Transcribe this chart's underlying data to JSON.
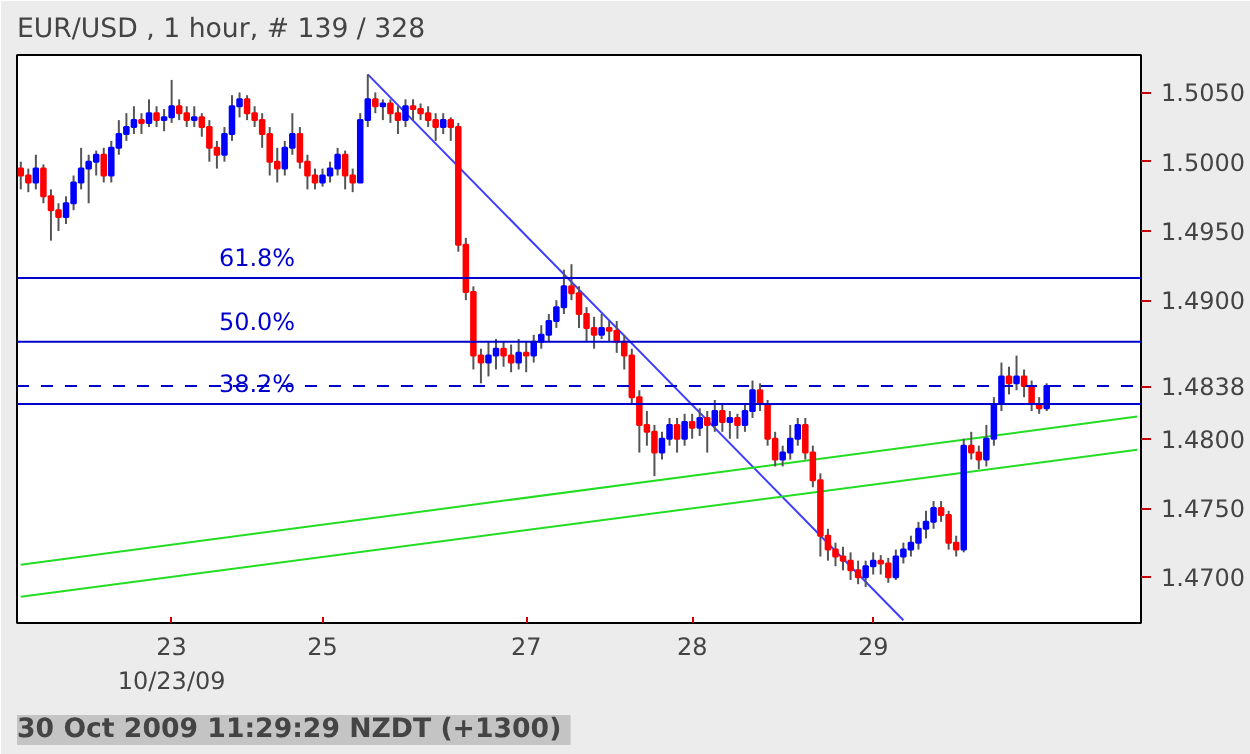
{
  "chart_data": {
    "type": "candlestick",
    "title": "EUR/USD , 1 hour, # 139 / 328",
    "annotations": [
      "30 Oct 2009 11:29:29  NZDT (+1300)",
      {
        "text": "61.8%",
        "y": 1.4916
      },
      {
        "text": "50.0%",
        "y": 1.487
      },
      {
        "text": "38.2%",
        "y": 1.4825
      }
    ],
    "categories": [
      null,
      null,
      null,
      null,
      null,
      null,
      null,
      null,
      null,
      null,
      null,
      null,
      null,
      null,
      null,
      null,
      null,
      null,
      null,
      null,
      "23\n10/23/09",
      null,
      null,
      null,
      null,
      null,
      null,
      null,
      null,
      null,
      null,
      null,
      null,
      null,
      null,
      null,
      null,
      null,
      null,
      null,
      "25",
      null,
      null,
      null,
      null,
      null,
      null,
      null,
      null,
      null,
      null,
      null,
      null,
      null,
      null,
      null,
      null,
      null,
      null,
      null,
      null,
      null,
      null,
      null,
      null,
      null,
      null,
      "27",
      null,
      null,
      null,
      null,
      null,
      null,
      null,
      null,
      null,
      null,
      null,
      null,
      null,
      null,
      null,
      null,
      null,
      null,
      null,
      null,
      null,
      "28",
      null,
      null,
      null,
      null,
      null,
      null,
      null,
      null,
      null,
      null,
      null,
      null,
      null,
      null,
      null,
      null,
      null,
      null,
      null,
      null,
      null,
      null,
      null,
      "29",
      null,
      null,
      null,
      null,
      null,
      null,
      null,
      null,
      null,
      null,
      null,
      null,
      null,
      null,
      null,
      null,
      null,
      null,
      null,
      null,
      null,
      null,
      null,
      null,
      null,
      null,
      null,
      null,
      null,
      null,
      null,
      null,
      null,
      null,
      null
    ],
    "ohlc": [
      [
        1.4995,
        1.5,
        1.498,
        1.499
      ],
      [
        1.499,
        1.4995,
        1.4978,
        1.4985
      ],
      [
        1.4985,
        1.5005,
        1.498,
        1.4995
      ],
      [
        1.4995,
        1.4998,
        1.497,
        1.4975
      ],
      [
        1.4975,
        1.498,
        1.4943,
        1.4965
      ],
      [
        1.4965,
        1.497,
        1.495,
        1.496
      ],
      [
        1.496,
        1.4975,
        1.4955,
        1.497
      ],
      [
        1.497,
        1.499,
        1.4965,
        1.4985
      ],
      [
        1.4985,
        1.501,
        1.498,
        1.4995
      ],
      [
        1.4995,
        1.5005,
        1.497,
        1.5
      ],
      [
        1.5,
        1.5008,
        1.499,
        1.5005
      ],
      [
        1.5005,
        1.501,
        1.4985,
        1.499
      ],
      [
        1.499,
        1.5015,
        1.4985,
        1.501
      ],
      [
        1.501,
        1.503,
        1.5005,
        1.502
      ],
      [
        1.502,
        1.5035,
        1.5015,
        1.5025
      ],
      [
        1.5025,
        1.504,
        1.502,
        1.503
      ],
      [
        1.503,
        1.5035,
        1.502,
        1.5028
      ],
      [
        1.5028,
        1.5045,
        1.5025,
        1.5035
      ],
      [
        1.5035,
        1.504,
        1.5025,
        1.503
      ],
      [
        1.503,
        1.5038,
        1.5022,
        1.5032
      ],
      [
        1.5032,
        1.5059,
        1.5028,
        1.504
      ],
      [
        1.504,
        1.5045,
        1.503,
        1.5035
      ],
      [
        1.5035,
        1.504,
        1.5025,
        1.503
      ],
      [
        1.503,
        1.504,
        1.5025,
        1.5032
      ],
      [
        1.5032,
        1.5035,
        1.5018,
        1.5025
      ],
      [
        1.5025,
        1.503,
        1.5,
        1.501
      ],
      [
        1.501,
        1.5015,
        1.4995,
        1.5005
      ],
      [
        1.5005,
        1.5025,
        1.5,
        1.502
      ],
      [
        1.502,
        1.5048,
        1.5015,
        1.504
      ],
      [
        1.504,
        1.505,
        1.5032,
        1.5045
      ],
      [
        1.5045,
        1.5048,
        1.503,
        1.5035
      ],
      [
        1.5035,
        1.504,
        1.5025,
        1.503
      ],
      [
        1.503,
        1.5035,
        1.501,
        1.502
      ],
      [
        1.502,
        1.5025,
        1.499,
        1.5
      ],
      [
        1.5,
        1.501,
        1.4985,
        1.4995
      ],
      [
        1.4995,
        1.5015,
        1.499,
        1.501
      ],
      [
        1.501,
        1.5035,
        1.5005,
        1.502
      ],
      [
        1.502,
        1.5025,
        1.4995,
        1.5
      ],
      [
        1.5,
        1.5005,
        1.498,
        1.499
      ],
      [
        1.499,
        1.4995,
        1.498,
        1.4985
      ],
      [
        1.4985,
        1.4995,
        1.4982,
        1.499
      ],
      [
        1.499,
        1.5,
        1.4985,
        1.4995
      ],
      [
        1.4995,
        1.501,
        1.499,
        1.5005
      ],
      [
        1.5005,
        1.5008,
        1.498,
        1.499
      ],
      [
        1.499,
        1.4995,
        1.4978,
        1.4985
      ],
      [
        1.4985,
        1.5035,
        1.4985,
        1.503
      ],
      [
        1.503,
        1.5063,
        1.5025,
        1.5045
      ],
      [
        1.5045,
        1.505,
        1.5035,
        1.504
      ],
      [
        1.504,
        1.5045,
        1.503,
        1.5042
      ],
      [
        1.5042,
        1.5045,
        1.5028,
        1.5035
      ],
      [
        1.5035,
        1.504,
        1.502,
        1.503
      ],
      [
        1.503,
        1.5045,
        1.5025,
        1.504
      ],
      [
        1.504,
        1.5045,
        1.503,
        1.5038
      ],
      [
        1.5038,
        1.5042,
        1.503,
        1.5035
      ],
      [
        1.5035,
        1.504,
        1.5025,
        1.503
      ],
      [
        1.503,
        1.5035,
        1.5015,
        1.5025
      ],
      [
        1.5025,
        1.5035,
        1.502,
        1.503
      ],
      [
        1.503,
        1.5032,
        1.5015,
        1.5025
      ],
      [
        1.5025,
        1.5028,
        1.4935,
        1.494
      ],
      [
        1.494,
        1.4945,
        1.49,
        1.4906
      ],
      [
        1.4906,
        1.491,
        1.485,
        1.486
      ],
      [
        1.486,
        1.4865,
        1.484,
        1.4855
      ],
      [
        1.4855,
        1.487,
        1.4845,
        1.486
      ],
      [
        1.486,
        1.4872,
        1.485,
        1.4865
      ],
      [
        1.4865,
        1.487,
        1.4852,
        1.486
      ],
      [
        1.486,
        1.4868,
        1.4848,
        1.4855
      ],
      [
        1.4855,
        1.4872,
        1.485,
        1.4862
      ],
      [
        1.4862,
        1.487,
        1.4848,
        1.486
      ],
      [
        1.486,
        1.4875,
        1.4855,
        1.487
      ],
      [
        1.487,
        1.4882,
        1.4865,
        1.4875
      ],
      [
        1.4875,
        1.489,
        1.487,
        1.4885
      ],
      [
        1.4885,
        1.49,
        1.488,
        1.4895
      ],
      [
        1.4895,
        1.4922,
        1.489,
        1.491
      ],
      [
        1.491,
        1.4926,
        1.49,
        1.4905
      ],
      [
        1.4905,
        1.491,
        1.488,
        1.489
      ],
      [
        1.489,
        1.4895,
        1.487,
        1.488
      ],
      [
        1.488,
        1.4888,
        1.4865,
        1.4875
      ],
      [
        1.4875,
        1.489,
        1.4872,
        1.488
      ],
      [
        1.488,
        1.4885,
        1.487,
        1.4878
      ],
      [
        1.4878,
        1.4885,
        1.4862,
        1.487
      ],
      [
        1.487,
        1.4875,
        1.485,
        1.486
      ],
      [
        1.486,
        1.4865,
        1.4825,
        1.483
      ],
      [
        1.483,
        1.4835,
        1.479,
        1.481
      ],
      [
        1.481,
        1.482,
        1.4795,
        1.4805
      ],
      [
        1.4805,
        1.481,
        1.4773,
        1.479
      ],
      [
        1.479,
        1.4805,
        1.4785,
        1.48
      ],
      [
        1.48,
        1.4815,
        1.4795,
        1.481
      ],
      [
        1.481,
        1.4815,
        1.479,
        1.48
      ],
      [
        1.48,
        1.4818,
        1.4795,
        1.4812
      ],
      [
        1.4812,
        1.4818,
        1.48,
        1.4808
      ],
      [
        1.4808,
        1.4822,
        1.4802,
        1.4815
      ],
      [
        1.4815,
        1.482,
        1.479,
        1.481
      ],
      [
        1.481,
        1.4828,
        1.4805,
        1.482
      ],
      [
        1.482,
        1.4825,
        1.4805,
        1.4812
      ],
      [
        1.4812,
        1.482,
        1.48,
        1.4815
      ],
      [
        1.4815,
        1.4818,
        1.48,
        1.481
      ],
      [
        1.481,
        1.4825,
        1.4805,
        1.482
      ],
      [
        1.482,
        1.4842,
        1.4815,
        1.4835
      ],
      [
        1.4835,
        1.484,
        1.482,
        1.4825
      ],
      [
        1.4825,
        1.4828,
        1.4795,
        1.48
      ],
      [
        1.48,
        1.4805,
        1.478,
        1.4785
      ],
      [
        1.4785,
        1.4795,
        1.478,
        1.479
      ],
      [
        1.479,
        1.481,
        1.4785,
        1.48
      ],
      [
        1.48,
        1.4815,
        1.4795,
        1.481
      ],
      [
        1.481,
        1.4815,
        1.4785,
        1.479
      ],
      [
        1.479,
        1.4795,
        1.4765,
        1.477
      ],
      [
        1.477,
        1.4775,
        1.4715,
        1.473
      ],
      [
        1.473,
        1.4735,
        1.4712,
        1.472
      ],
      [
        1.472,
        1.4725,
        1.4708,
        1.4715
      ],
      [
        1.4715,
        1.4722,
        1.4705,
        1.4712
      ],
      [
        1.4712,
        1.4718,
        1.4698,
        1.4705
      ],
      [
        1.4705,
        1.4712,
        1.4695,
        1.47
      ],
      [
        1.47,
        1.4712,
        1.4693,
        1.4708
      ],
      [
        1.4708,
        1.4718,
        1.4702,
        1.4712
      ],
      [
        1.4712,
        1.4716,
        1.4702,
        1.471
      ],
      [
        1.471,
        1.4714,
        1.4696,
        1.47
      ],
      [
        1.47,
        1.472,
        1.4698,
        1.4715
      ],
      [
        1.4715,
        1.4725,
        1.471,
        1.472
      ],
      [
        1.472,
        1.473,
        1.4715,
        1.4725
      ],
      [
        1.4725,
        1.474,
        1.472,
        1.4735
      ],
      [
        1.4735,
        1.4748,
        1.4728,
        1.474
      ],
      [
        1.474,
        1.4755,
        1.4735,
        1.475
      ],
      [
        1.475,
        1.4755,
        1.474,
        1.4745
      ],
      [
        1.4745,
        1.4748,
        1.472,
        1.4725
      ],
      [
        1.4725,
        1.473,
        1.4715,
        1.472
      ],
      [
        1.472,
        1.48,
        1.4718,
        1.4795
      ],
      [
        1.4795,
        1.4805,
        1.4785,
        1.479
      ],
      [
        1.479,
        1.4795,
        1.4778,
        1.4785
      ],
      [
        1.4785,
        1.481,
        1.478,
        1.48
      ],
      [
        1.48,
        1.483,
        1.4795,
        1.4825
      ],
      [
        1.4825,
        1.4855,
        1.482,
        1.4845
      ],
      [
        1.4845,
        1.4852,
        1.4832,
        1.484
      ],
      [
        1.484,
        1.486,
        1.4835,
        1.4845
      ],
      [
        1.4845,
        1.485,
        1.483,
        1.4838
      ],
      [
        1.4838,
        1.4842,
        1.482,
        1.4825
      ],
      [
        1.4825,
        1.483,
        1.4818,
        1.4822
      ],
      [
        1.4822,
        1.484,
        1.482,
        1.4838
      ],
      null,
      null,
      null,
      null,
      null,
      null,
      null,
      null,
      null,
      null,
      null,
      null
    ],
    "colors": [
      "#ff0000",
      "#ff0000",
      "#0000ff",
      "#ff0000",
      "#ff0000",
      "#ff0000",
      "#0000ff",
      "#0000ff",
      "#0000ff",
      "#0000ff",
      "#0000ff",
      "#ff0000",
      "#0000ff",
      "#0000ff",
      "#0000ff",
      "#0000ff",
      "#ff0000",
      "#0000ff",
      "#ff0000",
      "#0000ff",
      "#0000ff",
      "#ff0000",
      "#ff0000",
      "#0000ff",
      "#ff0000",
      "#ff0000",
      "#ff0000",
      "#0000ff",
      "#0000ff",
      "#0000ff",
      "#ff0000",
      "#ff0000",
      "#ff0000",
      "#ff0000",
      "#ff0000",
      "#0000ff",
      "#0000ff",
      "#ff0000",
      "#ff0000",
      "#ff0000",
      "#0000ff",
      "#0000ff",
      "#0000ff",
      "#ff0000",
      "#ff0000",
      "#0000ff",
      "#0000ff",
      "#ff0000",
      "#0000ff",
      "#ff0000",
      "#ff0000",
      "#0000ff",
      "#ff0000",
      "#ff0000",
      "#ff0000",
      "#ff0000",
      "#0000ff",
      "#ff0000",
      "#ff0000",
      "#ff0000",
      "#ff0000",
      "#ff0000",
      "#0000ff",
      "#0000ff",
      "#ff0000",
      "#ff0000",
      "#0000ff",
      "#ff0000",
      "#0000ff",
      "#0000ff",
      "#0000ff",
      "#0000ff",
      "#0000ff",
      "#ff0000",
      "#ff0000",
      "#ff0000",
      "#ff0000",
      "#0000ff",
      "#ff0000",
      "#ff0000",
      "#ff0000",
      "#ff0000",
      "#ff0000",
      "#ff0000",
      "#ff0000",
      "#0000ff",
      "#0000ff",
      "#ff0000",
      "#0000ff",
      "#ff0000",
      "#0000ff",
      "#ff0000",
      "#0000ff",
      "#ff0000",
      "#0000ff",
      "#ff0000",
      "#0000ff",
      "#0000ff",
      "#ff0000",
      "#ff0000",
      "#ff0000",
      "#0000ff",
      "#0000ff",
      "#0000ff",
      "#ff0000",
      "#ff0000",
      "#ff0000",
      "#ff0000",
      "#ff0000",
      "#ff0000",
      "#ff0000",
      "#ff0000",
      "#0000ff",
      "#0000ff",
      "#ff0000",
      "#ff0000",
      "#0000ff",
      "#0000ff",
      "#0000ff",
      "#0000ff",
      "#0000ff",
      "#0000ff",
      "#ff0000",
      "#ff0000",
      "#ff0000",
      "#0000ff",
      "#ff0000",
      "#ff0000",
      "#0000ff",
      "#0000ff",
      "#0000ff",
      "#ff0000",
      "#0000ff",
      "#ff0000",
      "#ff0000",
      "#ff0000",
      "#0000ff",
      null,
      null,
      null,
      null,
      null,
      null,
      null,
      null,
      null,
      null,
      null,
      null
    ],
    "series": [
      {
        "type": "line",
        "color": "#3c3cff",
        "values": [
          null,
          null,
          null,
          null,
          null,
          null,
          null,
          null,
          null,
          null,
          null,
          null,
          null,
          null,
          null,
          null,
          null,
          null,
          null,
          null,
          null,
          null,
          null,
          null,
          null,
          null,
          null,
          null,
          null,
          null,
          null,
          null,
          null,
          null,
          null,
          null,
          null,
          null,
          null,
          null,
          null,
          null,
          null,
          null,
          null,
          null,
          1.5063,
          null,
          null,
          null,
          null,
          null,
          null,
          null,
          null,
          null,
          null,
          null,
          null,
          null,
          null,
          null,
          null,
          null,
          null,
          null,
          null,
          null,
          null,
          null,
          null,
          null,
          null,
          null,
          null,
          null,
          null,
          null,
          null,
          null,
          null,
          null,
          null,
          null,
          null,
          null,
          null,
          null,
          null,
          null,
          null,
          null,
          null,
          null,
          null,
          null,
          null,
          null,
          null,
          null,
          null,
          null,
          null,
          null,
          null,
          null,
          null,
          null,
          null,
          null,
          null,
          null,
          null,
          null,
          null,
          null,
          null,
          1.4669,
          null,
          null,
          null,
          null,
          null,
          null,
          null,
          null,
          null,
          null,
          null,
          null,
          null,
          null,
          null,
          null,
          null,
          null,
          null,
          null,
          null,
          null,
          null,
          null,
          null,
          null,
          null,
          null,
          null,
          null,
          null
        ]
      },
      {
        "type": "line",
        "color": "#22dd22",
        "values": [
          1.4709,
          null,
          null,
          null,
          null,
          null,
          null,
          null,
          null,
          null,
          null,
          null,
          null,
          null,
          null,
          null,
          null,
          null,
          null,
          null,
          null,
          null,
          null,
          null,
          null,
          null,
          null,
          null,
          null,
          null,
          null,
          null,
          null,
          null,
          null,
          null,
          null,
          null,
          null,
          null,
          null,
          null,
          null,
          null,
          null,
          null,
          null,
          null,
          null,
          null,
          null,
          null,
          null,
          null,
          null,
          null,
          null,
          null,
          null,
          null,
          null,
          null,
          null,
          null,
          null,
          null,
          null,
          null,
          null,
          null,
          null,
          null,
          null,
          null,
          null,
          null,
          null,
          null,
          null,
          null,
          null,
          null,
          null,
          null,
          null,
          null,
          null,
          null,
          null,
          null,
          null,
          null,
          null,
          null,
          null,
          null,
          null,
          null,
          null,
          null,
          null,
          null,
          null,
          null,
          null,
          null,
          null,
          null,
          null,
          null,
          null,
          null,
          null,
          null,
          null,
          null,
          null,
          null,
          null,
          null,
          null,
          null,
          null,
          null,
          null,
          null,
          null,
          null,
          null,
          null,
          null,
          null,
          null,
          null,
          null,
          null,
          null,
          null,
          null,
          null,
          null,
          null,
          null,
          null,
          null,
          null,
          null,
          null,
          1.4816
        ]
      },
      {
        "type": "line",
        "color": "#22dd22",
        "values": [
          1.4686,
          null,
          null,
          null,
          null,
          null,
          null,
          null,
          null,
          null,
          null,
          null,
          null,
          null,
          null,
          null,
          null,
          null,
          null,
          null,
          null,
          null,
          null,
          null,
          null,
          null,
          null,
          null,
          null,
          null,
          null,
          null,
          null,
          null,
          null,
          null,
          null,
          null,
          null,
          null,
          null,
          null,
          null,
          null,
          null,
          null,
          null,
          null,
          null,
          null,
          null,
          null,
          null,
          null,
          null,
          null,
          null,
          null,
          null,
          null,
          null,
          null,
          null,
          null,
          null,
          null,
          null,
          null,
          null,
          null,
          null,
          null,
          null,
          null,
          null,
          null,
          null,
          null,
          null,
          null,
          null,
          null,
          null,
          null,
          null,
          null,
          null,
          null,
          null,
          null,
          null,
          null,
          null,
          null,
          null,
          null,
          null,
          null,
          null,
          null,
          null,
          null,
          null,
          null,
          null,
          null,
          null,
          null,
          null,
          null,
          null,
          null,
          null,
          null,
          null,
          null,
          null,
          null,
          null,
          null,
          null,
          null,
          null,
          null,
          null,
          null,
          null,
          null,
          null,
          null,
          null,
          null,
          null,
          null,
          null,
          null,
          null,
          null,
          null,
          null,
          null,
          null,
          null,
          null,
          null,
          null,
          null,
          null,
          1.4792
        ]
      }
    ],
    "ref_lines": [
      {
        "axis": "y",
        "value": 1.4916,
        "color": "#0000cc"
      },
      {
        "axis": "y",
        "value": 1.487,
        "color": "#0000cc"
      },
      {
        "axis": "y",
        "value": 1.4825,
        "color": "#0000cc"
      },
      {
        "axis": "y",
        "value": 1.4838,
        "color": "#0000cc",
        "line_style": "dashed"
      }
    ],
    "ylim": [
      1.4667,
      1.5077
    ],
    "yticks": [
      {
        "value": 1.47,
        "label": "1.4700"
      },
      {
        "value": 1.475,
        "label": "1.4750"
      },
      {
        "value": 1.48,
        "label": "1.4800"
      },
      {
        "value": 1.4838,
        "label": "1.4838"
      },
      {
        "value": 1.49,
        "label": "1.4900"
      },
      {
        "value": 1.495,
        "label": "1.4950"
      },
      {
        "value": 1.5,
        "label": "1.5000"
      },
      {
        "value": 1.505,
        "label": "1.5050"
      }
    ],
    "grid": false
  }
}
